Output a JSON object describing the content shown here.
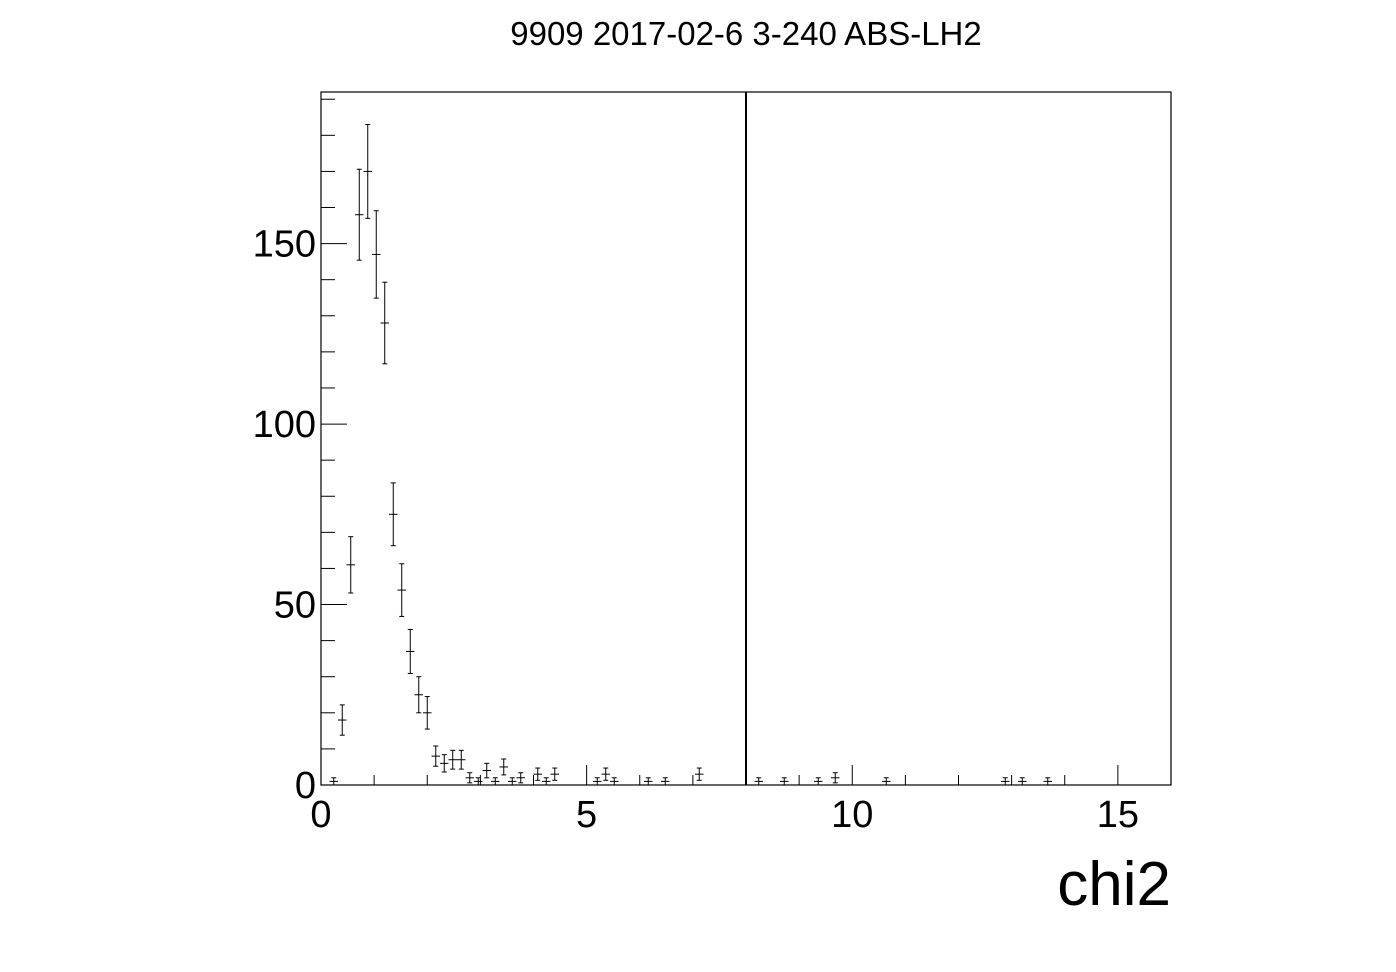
{
  "chart_data": {
    "type": "scatter",
    "title": "9909 2017-02-6 3-240 ABS-LH2",
    "xlabel": "chi2",
    "ylabel": "",
    "xlim": [
      0,
      16
    ],
    "ylim": [
      0,
      192
    ],
    "x_ticks": [
      "0",
      "5",
      "10",
      "15"
    ],
    "y_ticks": [
      "0",
      "50",
      "100",
      "150"
    ],
    "cut_line_x": 8,
    "bin_width": 0.16,
    "series": [
      {
        "style": "error-bars",
        "x": [
          0.24,
          0.4,
          0.56,
          0.72,
          0.88,
          1.04,
          1.2,
          1.36,
          1.52,
          1.68,
          1.84,
          2.0,
          2.16,
          2.32,
          2.48,
          2.64,
          2.8,
          2.96,
          3.12,
          3.28,
          3.44,
          3.6,
          3.76,
          4.08,
          4.24,
          4.4,
          5.2,
          5.36,
          5.52,
          6.16,
          6.48,
          7.12,
          8.24,
          8.72,
          9.36,
          9.68,
          10.64,
          12.88,
          13.2,
          13.68
        ],
        "y": [
          1,
          18,
          61,
          158,
          170,
          147,
          128,
          75,
          54,
          37,
          25,
          20,
          8,
          6,
          7,
          7,
          2,
          1,
          4,
          1,
          5,
          1,
          2,
          3,
          1,
          3,
          1,
          3,
          1,
          1,
          1,
          3,
          1,
          1,
          1,
          2,
          1,
          1,
          1,
          1
        ],
        "y_err": [
          1,
          4.2,
          7.8,
          12.6,
          13.0,
          12.1,
          11.3,
          8.7,
          7.3,
          6.1,
          5.0,
          4.5,
          2.8,
          2.4,
          2.6,
          2.6,
          1.4,
          1,
          2,
          1,
          2.2,
          1,
          1.4,
          1.7,
          1,
          1.7,
          1,
          1.7,
          1,
          1,
          1,
          1.7,
          1,
          1,
          1,
          1.4,
          1,
          1,
          1,
          1
        ]
      }
    ]
  }
}
